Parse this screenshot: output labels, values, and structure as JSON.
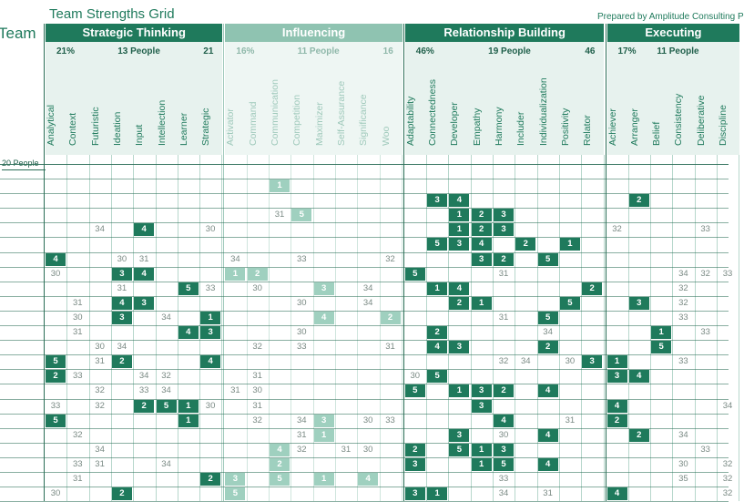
{
  "header": {
    "title": "Team Strengths Grid",
    "prepared_by": "Prepared by Amplitude Consulting P",
    "left_label": "Team",
    "people_label": "20 People"
  },
  "colors": {
    "strategic": "#1f7a5c",
    "strategic_light": "#e7f2ee",
    "influencing": "#8fc3b1",
    "influencing_light": "#eef6f3",
    "relationship": "#1f7a5c",
    "relationship_light": "#e7f2ee",
    "executing": "#1f7a5c",
    "executing_light": "#e7f2ee",
    "top5_dark": "#1f7a5c",
    "top5_light": "#9fd0bf"
  },
  "groups": [
    {
      "key": "strategic",
      "name": "Strategic Thinking",
      "pct": "21%",
      "people": "13 People",
      "count": "21",
      "faded": false,
      "columns": [
        "Analytical",
        "Context",
        "Futuristic",
        "Ideation",
        "Input",
        "Intellection",
        "Learner",
        "Strategic"
      ]
    },
    {
      "key": "influencing",
      "name": "Influencing",
      "pct": "16%",
      "people": "11 People",
      "count": "16",
      "faded": true,
      "columns": [
        "Activator",
        "Command",
        "Communication",
        "Competition",
        "Maximizer",
        "Self-Assurance",
        "Significance",
        "Woo"
      ]
    },
    {
      "key": "relationship",
      "name": "Relationship Building",
      "pct": "46%",
      "people": "19 People",
      "count": "46",
      "faded": false,
      "columns": [
        "Adaptability",
        "Connectedness",
        "Developer",
        "Empathy",
        "Harmony",
        "Includer",
        "Individualization",
        "Positivity",
        "Relator"
      ]
    },
    {
      "key": "executing",
      "name": "Executing",
      "pct": "17%",
      "people": "11 People",
      "count": "",
      "faded": false,
      "columns": [
        "Achiever",
        "Arranger",
        "Belief",
        "Consistency",
        "Deliberative",
        "Discipline"
      ]
    }
  ],
  "rows": [
    {
      "cells": {
        "Communication": "1"
      }
    },
    {
      "cells": {
        "Connectedness": "3",
        "Developer": "4",
        "Arranger": "2"
      }
    },
    {
      "cells": {
        "Communication": "31",
        "Competition": "5",
        "Developer": "1",
        "Empathy": "2",
        "Harmony": "3"
      }
    },
    {
      "cells": {
        "Futuristic": "34",
        "Input": "4",
        "Strategic": "30",
        "Developer": "1",
        "Empathy": "2",
        "Harmony": "3",
        "Achiever": "32",
        "Deliberative": "33"
      }
    },
    {
      "cells": {
        "Connectedness": "5",
        "Developer": "3",
        "Empathy": "4",
        "Includer": "2",
        "Positivity": "1"
      }
    },
    {
      "cells": {
        "Analytical": "4",
        "Input": "31",
        "Ideation": "30",
        "Activator": "34",
        "Competition": "33",
        "Woo": "32",
        "Harmony": "2",
        "Empathy": "3",
        "Individualization": "5"
      }
    },
    {
      "cells": {
        "Analytical": "30",
        "Ideation": "3",
        "Input": "4",
        "Activator": "1",
        "Command": "2",
        "Adaptability": "5",
        "Harmony": "31",
        "Consistency": "34",
        "Deliberative": "32",
        "Discipline": "33"
      }
    },
    {
      "cells": {
        "Ideation": "31",
        "Learner": "5",
        "Strategic": "33",
        "Command": "30",
        "Maximizer": "3",
        "Significance": "34",
        "Connectedness": "1",
        "Developer": "4",
        "Relator": "2",
        "Consistency": "32"
      }
    },
    {
      "cells": {
        "Context": "31",
        "Ideation": "4",
        "Input": "3",
        "Competition": "30",
        "Significance": "34",
        "Developer": "2",
        "Empathy": "1",
        "Positivity": "5",
        "Arranger": "3",
        "Consistency": "32"
      }
    },
    {
      "cells": {
        "Context": "30",
        "Ideation": "3",
        "Intellection": "34",
        "Strategic": "1",
        "Maximizer": "4",
        "Woo": "2",
        "Harmony": "31",
        "Individualization": "5",
        "Consistency": "33"
      }
    },
    {
      "cells": {
        "Context": "31",
        "Learner": "4",
        "Strategic": "3",
        "Competition": "30",
        "Connectedness": "2",
        "Individualization": "34",
        "Belief": "1",
        "Deliberative": "33"
      }
    },
    {
      "cells": {
        "Futuristic": "30",
        "Ideation": "34",
        "Command": "32",
        "Competition": "33",
        "Woo": "31",
        "Connectedness": "4",
        "Developer": "3",
        "Individualization": "2",
        "Belief": "5"
      }
    },
    {
      "cells": {
        "Analytical": "5",
        "Futuristic": "31",
        "Ideation": "2",
        "Strategic": "4",
        "Harmony": "32",
        "Includer": "34",
        "Positivity": "30",
        "Relator": "3",
        "Achiever": "1",
        "Consistency": "33"
      }
    },
    {
      "cells": {
        "Analytical": "2",
        "Context": "33",
        "Input": "34",
        "Intellection": "32",
        "Command": "31",
        "Adaptability": "30",
        "Connectedness": "5",
        "Achiever": "3",
        "Arranger": "4"
      }
    },
    {
      "cells": {
        "Futuristic": "32",
        "Input": "33",
        "Intellection": "34",
        "Activator": "31",
        "Command": "30",
        "Adaptability": "5",
        "Developer": "1",
        "Empathy": "3",
        "Harmony": "2",
        "Individualization": "4"
      }
    },
    {
      "cells": {
        "Analytical": "33",
        "Futuristic": "32",
        "Input": "2",
        "Intellection": "5",
        "Learner": "1",
        "Strategic": "30",
        "Command": "31",
        "Empathy": "3",
        "Achiever": "4",
        "Discipline": "34"
      }
    },
    {
      "cells": {
        "Analytical": "5",
        "Learner": "1",
        "Command": "32",
        "Competition": "34",
        "Maximizer": "3",
        "Significance": "30",
        "Woo": "33",
        "Harmony": "4",
        "Positivity": "31",
        "Achiever": "2"
      }
    },
    {
      "cells": {
        "Context": "32",
        "Competition": "31",
        "Maximizer": "1",
        "Developer": "3",
        "Harmony": "30",
        "Individualization": "4",
        "Arranger": "2",
        "Consistency": "34"
      }
    },
    {
      "cells": {
        "Futuristic": "34",
        "Communication": "4",
        "Competition": "32",
        "Self-Assurance": "31",
        "Significance": "30",
        "Adaptability": "2",
        "Developer": "5",
        "Empathy": "1",
        "Harmony": "3",
        "Deliberative": "33"
      }
    },
    {
      "cells": {
        "Context": "33",
        "Futuristic": "31",
        "Intellection": "34",
        "Communication": "2",
        "Adaptability": "3",
        "Empathy": "1",
        "Harmony": "5",
        "Individualization": "4",
        "Consistency": "30",
        "Discipline": "32"
      }
    },
    {
      "cells": {
        "Context": "31",
        "Strategic": "2",
        "Activator": "3",
        "Communication": "5",
        "Maximizer": "1",
        "Significance": "4",
        "Harmony": "33",
        "Consistency": "35",
        "Discipline": "32"
      }
    },
    {
      "cells": {
        "Analytical": "30",
        "Ideation": "2",
        "Activator": "5",
        "Adaptability": "3",
        "Connectedness": "1",
        "Harmony": "34",
        "Individualization": "31",
        "Achiever": "4",
        "Discipline": "32"
      }
    }
  ]
}
